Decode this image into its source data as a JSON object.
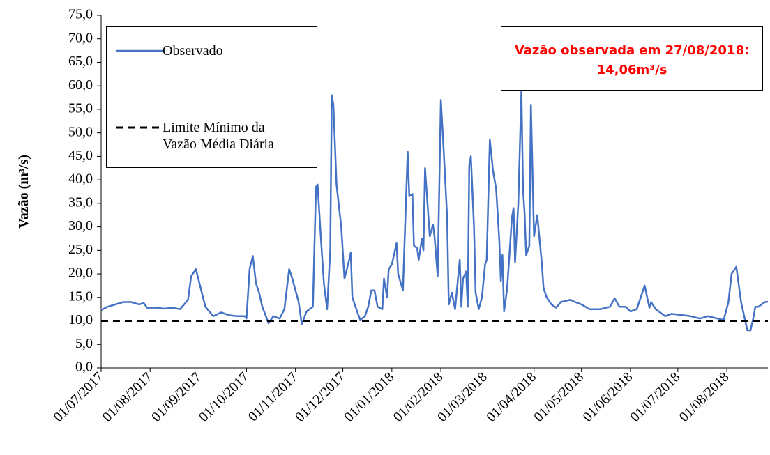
{
  "chart_data": {
    "type": "line",
    "y_label": "Vazão (m³/s)",
    "xlim": [
      "2017-07-01",
      "2018-08-27"
    ],
    "xticks": [
      {
        "value": "2017-07-01",
        "label": "01/07/2017"
      },
      {
        "value": "2017-08-01",
        "label": "01/08/2017"
      },
      {
        "value": "2017-09-01",
        "label": "01/09/2017"
      },
      {
        "value": "2017-10-01",
        "label": "01/10/2017"
      },
      {
        "value": "2017-11-01",
        "label": "01/11/2017"
      },
      {
        "value": "2017-12-01",
        "label": "01/12/2017"
      },
      {
        "value": "2018-01-01",
        "label": "01/01/2018"
      },
      {
        "value": "2018-02-01",
        "label": "01/02/2018"
      },
      {
        "value": "2018-03-01",
        "label": "01/03/2018"
      },
      {
        "value": "2018-04-01",
        "label": "01/04/2018"
      },
      {
        "value": "2018-05-01",
        "label": "01/05/2018"
      },
      {
        "value": "2018-06-01",
        "label": "01/06/2018"
      },
      {
        "value": "2018-07-01",
        "label": "01/07/2018"
      },
      {
        "value": "2018-08-01",
        "label": "01/08/2018"
      }
    ],
    "ylim": [
      0,
      75
    ],
    "yticks": [
      {
        "value": 0,
        "label": "0,0"
      },
      {
        "value": 5,
        "label": "5,0"
      },
      {
        "value": 10,
        "label": "10,0"
      },
      {
        "value": 15,
        "label": "15,0"
      },
      {
        "value": 20,
        "label": "20,0"
      },
      {
        "value": 25,
        "label": "25,0"
      },
      {
        "value": 30,
        "label": "30,0"
      },
      {
        "value": 35,
        "label": "35,0"
      },
      {
        "value": 40,
        "label": "40,0"
      },
      {
        "value": 45,
        "label": "45,0"
      },
      {
        "value": 50,
        "label": "50,0"
      },
      {
        "value": 55,
        "label": "55,0"
      },
      {
        "value": 60,
        "label": "60,0"
      },
      {
        "value": 65,
        "label": "65,0"
      },
      {
        "value": 70,
        "label": "70,0"
      },
      {
        "value": 75,
        "label": "75,0"
      }
    ],
    "legend": "top-left",
    "series": [
      {
        "name": "Observado",
        "color": "#4472c4",
        "dash": "solid",
        "x": [
          "2017-07-01",
          "2017-07-05",
          "2017-07-10",
          "2017-07-15",
          "2017-07-20",
          "2017-07-25",
          "2017-07-28",
          "2017-07-30",
          "2017-08-05",
          "2017-08-10",
          "2017-08-15",
          "2017-08-20",
          "2017-08-25",
          "2017-08-27",
          "2017-08-30",
          "2017-09-02",
          "2017-09-05",
          "2017-09-10",
          "2017-09-15",
          "2017-09-20",
          "2017-09-25",
          "2017-09-30",
          "2017-10-01",
          "2017-10-03",
          "2017-10-05",
          "2017-10-07",
          "2017-10-09",
          "2017-10-11",
          "2017-10-15",
          "2017-10-18",
          "2017-10-22",
          "2017-10-25",
          "2017-10-28",
          "2017-10-30",
          "2017-11-03",
          "2017-11-05",
          "2017-11-08",
          "2017-11-12",
          "2017-11-14",
          "2017-11-15",
          "2017-11-17",
          "2017-11-19",
          "2017-11-21",
          "2017-11-23",
          "2017-11-24",
          "2017-11-25",
          "2017-11-27",
          "2017-11-30",
          "2017-12-02",
          "2017-12-05",
          "2017-12-06",
          "2017-12-07",
          "2017-12-10",
          "2017-12-12",
          "2017-12-15",
          "2017-12-17",
          "2017-12-19",
          "2017-12-21",
          "2017-12-23",
          "2017-12-26",
          "2017-12-27",
          "2017-12-29",
          "2017-12-30",
          "2018-01-01",
          "2018-01-04",
          "2018-01-05",
          "2018-01-08",
          "2018-01-11",
          "2018-01-12",
          "2018-01-14",
          "2018-01-15",
          "2018-01-17",
          "2018-01-18",
          "2018-01-20",
          "2018-01-21",
          "2018-01-22",
          "2018-01-25",
          "2018-01-27",
          "2018-01-28",
          "2018-01-30",
          "2018-02-01",
          "2018-02-03",
          "2018-02-05",
          "2018-02-06",
          "2018-02-08",
          "2018-02-10",
          "2018-02-13",
          "2018-02-14",
          "2018-02-15",
          "2018-02-17",
          "2018-02-18",
          "2018-02-19",
          "2018-02-20",
          "2018-02-22",
          "2018-02-23",
          "2018-02-25",
          "2018-02-27",
          "2018-03-01",
          "2018-03-02",
          "2018-03-04",
          "2018-03-06",
          "2018-03-08",
          "2018-03-10",
          "2018-03-11",
          "2018-03-12",
          "2018-03-13",
          "2018-03-15",
          "2018-03-18",
          "2018-03-19",
          "2018-03-20",
          "2018-03-22",
          "2018-03-24",
          "2018-03-25",
          "2018-03-26",
          "2018-03-27",
          "2018-03-29",
          "2018-03-30",
          "2018-04-01",
          "2018-04-03",
          "2018-04-06",
          "2018-04-07",
          "2018-04-09",
          "2018-04-12",
          "2018-04-15",
          "2018-04-18",
          "2018-04-24",
          "2018-04-27",
          "2018-05-01",
          "2018-05-06",
          "2018-05-13",
          "2018-05-19",
          "2018-05-22",
          "2018-05-25",
          "2018-05-29",
          "2018-06-01",
          "2018-06-05",
          "2018-06-10",
          "2018-06-13",
          "2018-06-14",
          "2018-06-17",
          "2018-06-23",
          "2018-06-27",
          "2018-07-09",
          "2018-07-15",
          "2018-07-20",
          "2018-07-26",
          "2018-07-30",
          "2018-08-02",
          "2018-08-04",
          "2018-08-07",
          "2018-08-10",
          "2018-08-12",
          "2018-08-14",
          "2018-08-16",
          "2018-08-18",
          "2018-08-19",
          "2018-08-21",
          "2018-08-25",
          "2018-08-27"
        ],
        "values": [
          12.3,
          13,
          13.5,
          14,
          14,
          13.5,
          13.8,
          12.8,
          12.8,
          12.6,
          12.8,
          12.5,
          14.5,
          19.5,
          21,
          17,
          13,
          11,
          11.8,
          11.2,
          11,
          11,
          10.5,
          21,
          23.8,
          18,
          16,
          13,
          9.5,
          11,
          10.5,
          12.5,
          21,
          19,
          14,
          9.3,
          12,
          13,
          38.5,
          39,
          28,
          18,
          12.5,
          25,
          58,
          56,
          39,
          30,
          19,
          23,
          24.5,
          15,
          12,
          10.2,
          11,
          13,
          16.5,
          16.5,
          13,
          12.5,
          19,
          15,
          21,
          22,
          26.5,
          20,
          16.5,
          46,
          36.5,
          37,
          26,
          25.5,
          23,
          27.5,
          25,
          42.5,
          28,
          30.5,
          28,
          19.5,
          57,
          45,
          32,
          13.5,
          16,
          12.5,
          23,
          13,
          19,
          20.5,
          13,
          43,
          45,
          30,
          16,
          12.5,
          15,
          22,
          23,
          48.5,
          42,
          38,
          27,
          18.5,
          24,
          12,
          17,
          32,
          34,
          22.5,
          35,
          59,
          38,
          33,
          24,
          26,
          56,
          28,
          32.5,
          22,
          17,
          15,
          13.5,
          12.8,
          14,
          14.5,
          14,
          13.5,
          12.5,
          12.5,
          13,
          14.8,
          13,
          13,
          12,
          12.5,
          17.5,
          12.8,
          14,
          12.5,
          11,
          11.5,
          11,
          10.5,
          11,
          10.5,
          10.2,
          14,
          20,
          21.5,
          14,
          11,
          8,
          8,
          11,
          13,
          13,
          14,
          14.06
        ]
      },
      {
        "name": "Limite Mínimo da Vazão Média Diária",
        "color": "#000000",
        "dash": "dashed",
        "x": [
          "2017-07-01",
          "2018-08-27"
        ],
        "values": [
          10,
          10
        ]
      }
    ],
    "annotation": [
      "Vazão observada em 27/08/2018:",
      "14,06m³/s"
    ]
  }
}
